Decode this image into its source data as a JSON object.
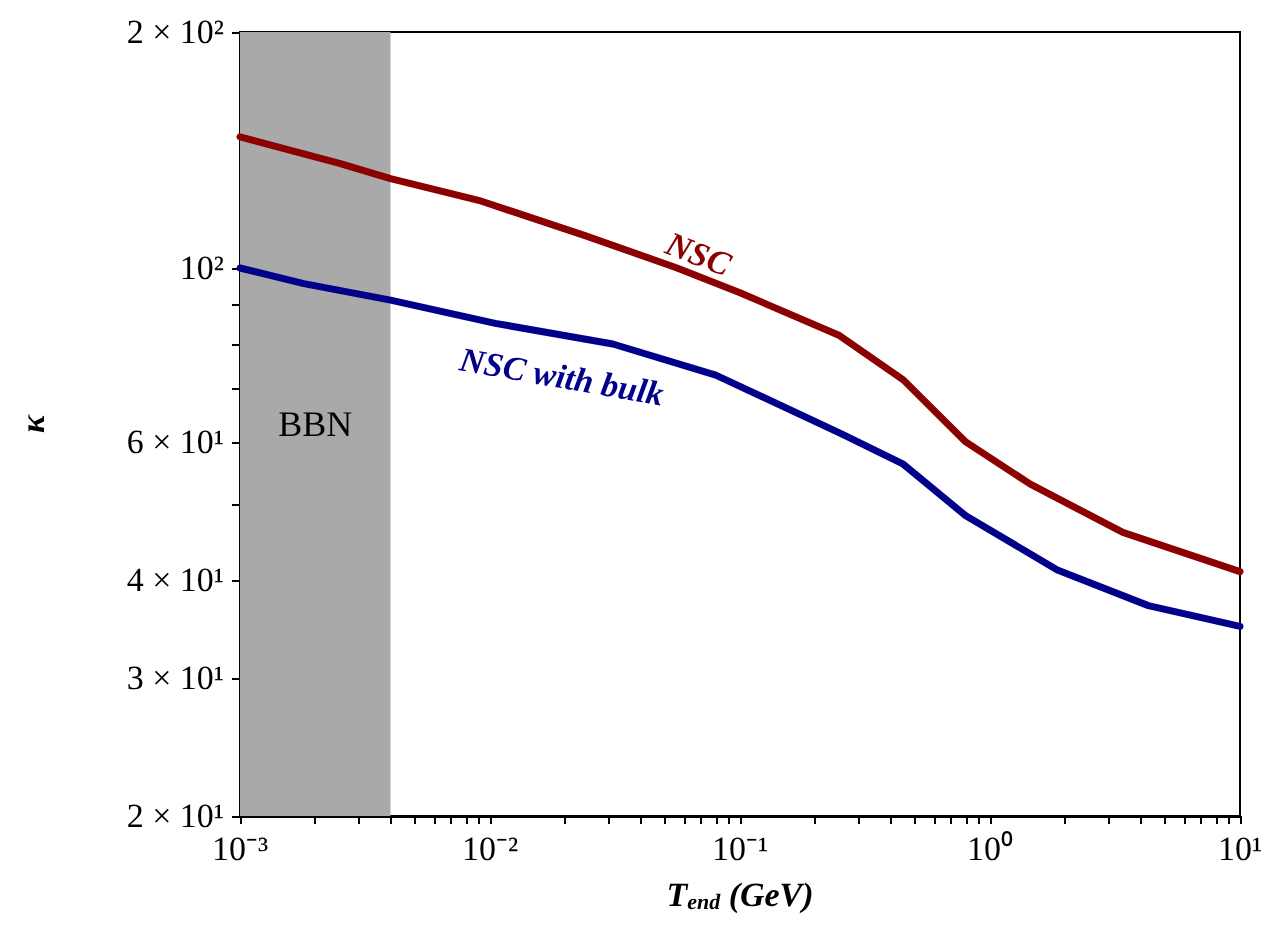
{
  "chart_data": {
    "type": "line",
    "xlabel": "T$_{end}$ (GeV)",
    "ylabel": "κ",
    "log": "xy",
    "grid": false,
    "legend": false,
    "marker": "none",
    "line_style": "solid",
    "xlim": [
      0.001,
      10
    ],
    "ylim": [
      20,
      200
    ],
    "xticks": [
      {
        "value": 0.001,
        "label": "10⁻³"
      },
      {
        "value": 0.002,
        "label": null
      },
      {
        "value": 0.003,
        "label": null
      },
      {
        "value": 0.004,
        "label": null
      },
      {
        "value": 0.005,
        "label": null
      },
      {
        "value": 0.006,
        "label": null
      },
      {
        "value": 0.007,
        "label": null
      },
      {
        "value": 0.008,
        "label": null
      },
      {
        "value": 0.009,
        "label": null
      },
      {
        "value": 0.01,
        "label": "10⁻²"
      },
      {
        "value": 0.02,
        "label": null
      },
      {
        "value": 0.03,
        "label": null
      },
      {
        "value": 0.04,
        "label": null
      },
      {
        "value": 0.05,
        "label": null
      },
      {
        "value": 0.06,
        "label": null
      },
      {
        "value": 0.07,
        "label": null
      },
      {
        "value": 0.08,
        "label": null
      },
      {
        "value": 0.09,
        "label": null
      },
      {
        "value": 0.1,
        "label": "10⁻¹"
      },
      {
        "value": 0.2,
        "label": null
      },
      {
        "value": 0.3,
        "label": null
      },
      {
        "value": 0.4,
        "label": null
      },
      {
        "value": 0.5,
        "label": null
      },
      {
        "value": 0.6,
        "label": null
      },
      {
        "value": 0.7,
        "label": null
      },
      {
        "value": 0.8,
        "label": null
      },
      {
        "value": 0.9,
        "label": null
      },
      {
        "value": 1,
        "label": "10⁰"
      },
      {
        "value": 2,
        "label": null
      },
      {
        "value": 3,
        "label": null
      },
      {
        "value": 4,
        "label": null
      },
      {
        "value": 5,
        "label": null
      },
      {
        "value": 6,
        "label": null
      },
      {
        "value": 7,
        "label": null
      },
      {
        "value": 8,
        "label": null
      },
      {
        "value": 9,
        "label": null
      },
      {
        "value": 10,
        "label": "10¹"
      }
    ],
    "yticks": [
      {
        "value": 20,
        "label": "2 × 10¹"
      },
      {
        "value": 30,
        "label": "3 × 10¹"
      },
      {
        "value": 40,
        "label": "4 × 10¹"
      },
      {
        "value": 50,
        "label": null
      },
      {
        "value": 60,
        "label": "6 × 10¹"
      },
      {
        "value": 70,
        "label": null
      },
      {
        "value": 80,
        "label": null
      },
      {
        "value": 90,
        "label": null
      },
      {
        "value": 100,
        "label": "10²"
      },
      {
        "value": 200,
        "label": "2 × 10²"
      }
    ],
    "bands": [
      {
        "axis": "x",
        "from": 0.001,
        "to": 0.004,
        "label": "BBN",
        "color": "#a9a9a9"
      }
    ],
    "series": [
      {
        "name": "NSC",
        "color": "#8b0000",
        "x": [
          0.001,
          0.0025,
          0.004,
          0.009,
          0.024,
          0.056,
          0.1,
          0.25,
          0.45,
          0.8,
          1.45,
          3.4,
          10
        ],
        "values": [
          147,
          136,
          130,
          122,
          110,
          100,
          93,
          82,
          72,
          60,
          53,
          46,
          41
        ]
      },
      {
        "name": "NSC with bulk",
        "color": "#00008b",
        "x": [
          0.001,
          0.0018,
          0.004,
          0.0105,
          0.031,
          0.08,
          0.256,
          0.45,
          0.8,
          1.86,
          4.3,
          10
        ],
        "values": [
          100,
          95.5,
          91,
          85,
          80,
          73,
          61.4,
          56.2,
          48.3,
          41.2,
          37.1,
          34.9
        ]
      }
    ]
  }
}
